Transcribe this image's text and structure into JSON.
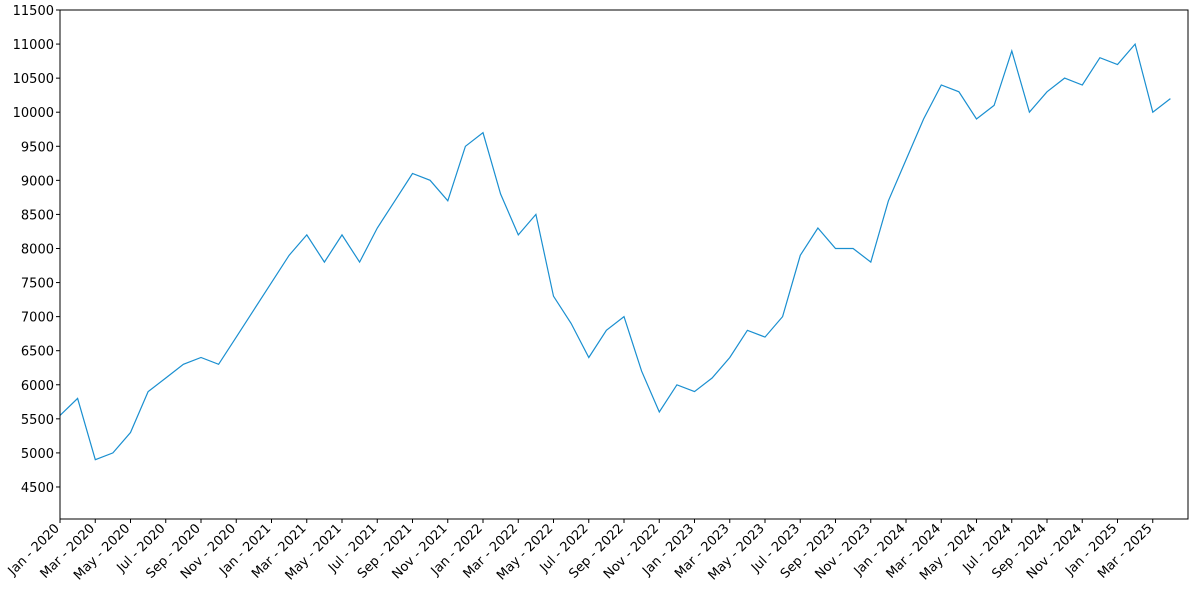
{
  "chart_data": {
    "type": "line",
    "x": [
      "2020-01",
      "2020-02",
      "2020-03",
      "2020-04",
      "2020-05",
      "2020-06",
      "2020-07",
      "2020-08",
      "2020-09",
      "2020-10",
      "2020-11",
      "2020-12",
      "2021-01",
      "2021-02",
      "2021-03",
      "2021-04",
      "2021-05",
      "2021-06",
      "2021-07",
      "2021-08",
      "2021-09",
      "2021-10",
      "2021-11",
      "2021-12",
      "2022-01",
      "2022-02",
      "2022-03",
      "2022-04",
      "2022-05",
      "2022-06",
      "2022-07",
      "2022-08",
      "2022-09",
      "2022-10",
      "2022-11",
      "2022-12",
      "2023-01",
      "2023-02",
      "2023-03",
      "2023-04",
      "2023-05",
      "2023-06",
      "2023-07",
      "2023-08",
      "2023-09",
      "2023-10",
      "2023-11",
      "2023-12",
      "2024-01",
      "2024-02",
      "2024-03",
      "2024-04",
      "2024-05",
      "2024-06",
      "2024-07",
      "2024-08",
      "2024-09",
      "2024-10",
      "2024-11",
      "2024-12",
      "2025-01",
      "2025-02",
      "2025-03",
      "2025-04"
    ],
    "series": [
      {
        "color": "#1a8fd0",
        "values": [
          5550,
          5800,
          4900,
          5000,
          5300,
          5900,
          6100,
          6300,
          6400,
          6300,
          6700,
          7100,
          7500,
          7900,
          8200,
          7800,
          8200,
          7800,
          8300,
          8700,
          9100,
          9000,
          8700,
          9500,
          9700,
          8800,
          8200,
          8500,
          7300,
          6900,
          6400,
          6800,
          7000,
          6200,
          5600,
          6000,
          5900,
          6100,
          6400,
          6800,
          6700,
          7000,
          7900,
          8300,
          8000,
          8000,
          7800,
          8700,
          9300,
          9900,
          10400,
          10300,
          9900,
          10100,
          10900,
          10000,
          10300,
          10500,
          10400,
          10800,
          10700,
          11000,
          10000,
          10200
        ]
      }
    ],
    "xlim": [
      "2020-01",
      "2025-05"
    ],
    "ylim": [
      4030,
      11500
    ],
    "yticks": [
      4500,
      5000,
      5500,
      6000,
      6500,
      7000,
      7500,
      8000,
      8500,
      9000,
      9500,
      10000,
      10500,
      11000,
      11500
    ],
    "xticks": [
      {
        "value": "2020-01",
        "label": "Jan - 2020"
      },
      {
        "value": "2020-03",
        "label": "Mar - 2020"
      },
      {
        "value": "2020-05",
        "label": "May - 2020"
      },
      {
        "value": "2020-07",
        "label": "Jul - 2020"
      },
      {
        "value": "2020-09",
        "label": "Sep - 2020"
      },
      {
        "value": "2020-11",
        "label": "Nov - 2020"
      },
      {
        "value": "2021-01",
        "label": "Jan - 2021"
      },
      {
        "value": "2021-03",
        "label": "Mar - 2021"
      },
      {
        "value": "2021-05",
        "label": "May - 2021"
      },
      {
        "value": "2021-07",
        "label": "Jul - 2021"
      },
      {
        "value": "2021-09",
        "label": "Sep - 2021"
      },
      {
        "value": "2021-11",
        "label": "Nov - 2021"
      },
      {
        "value": "2022-01",
        "label": "Jan - 2022"
      },
      {
        "value": "2022-03",
        "label": "Mar - 2022"
      },
      {
        "value": "2022-05",
        "label": "May - 2022"
      },
      {
        "value": "2022-07",
        "label": "Jul - 2022"
      },
      {
        "value": "2022-09",
        "label": "Sep - 2022"
      },
      {
        "value": "2022-11",
        "label": "Nov - 2022"
      },
      {
        "value": "2023-01",
        "label": "Jan - 2023"
      },
      {
        "value": "2023-03",
        "label": "Mar - 2023"
      },
      {
        "value": "2023-05",
        "label": "May - 2023"
      },
      {
        "value": "2023-07",
        "label": "Jul - 2023"
      },
      {
        "value": "2023-09",
        "label": "Sep - 2023"
      },
      {
        "value": "2023-11",
        "label": "Nov - 2023"
      },
      {
        "value": "2024-01",
        "label": "Jan - 2024"
      },
      {
        "value": "2024-03",
        "label": "Mar - 2024"
      },
      {
        "value": "2024-05",
        "label": "May - 2024"
      },
      {
        "value": "2024-07",
        "label": "Jul - 2024"
      },
      {
        "value": "2024-09",
        "label": "Sep - 2024"
      },
      {
        "value": "2024-11",
        "label": "Nov - 2024"
      },
      {
        "value": "2025-01",
        "label": "Jan - 2025"
      },
      {
        "value": "2025-03",
        "label": "Mar - 2025"
      }
    ],
    "grid": false
  }
}
